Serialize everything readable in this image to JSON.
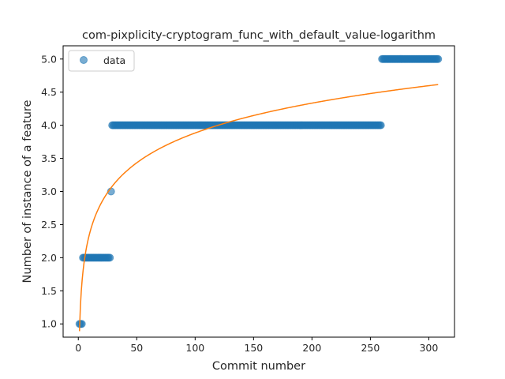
{
  "chart_data": {
    "type": "scatter",
    "title": "com-pixplicity-cryptogram_func_with_default_value-logarithm",
    "xlabel": "Commit number",
    "ylabel": "Number of instance of a feature",
    "xlim": [
      -13,
      322
    ],
    "ylim": [
      0.8,
      5.2
    ],
    "xticks": [
      0,
      50,
      100,
      150,
      200,
      250,
      300
    ],
    "yticks": [
      1.0,
      1.5,
      2.0,
      2.5,
      3.0,
      3.5,
      4.0,
      4.5,
      5.0
    ],
    "grid": false,
    "legend_position": "top-left",
    "series": [
      {
        "name": "data",
        "kind": "scatter",
        "color": "#1f77b4",
        "segments": [
          {
            "x_start": 1,
            "x_end": 3,
            "y": 1.0
          },
          {
            "x_start": 4,
            "x_end": 27,
            "y": 2.0
          },
          {
            "x_start": 28,
            "x_end": 28,
            "y": 3.0
          },
          {
            "x_start": 29,
            "x_end": 259,
            "y": 4.0
          },
          {
            "x_start": 260,
            "x_end": 308,
            "y": 5.0
          }
        ]
      },
      {
        "name": "",
        "kind": "line",
        "color": "#ff7f0e",
        "fit": {
          "form": "a + b*ln(x)",
          "a": 0.89,
          "b": 0.65,
          "x_start": 1,
          "x_end": 308
        }
      }
    ]
  }
}
